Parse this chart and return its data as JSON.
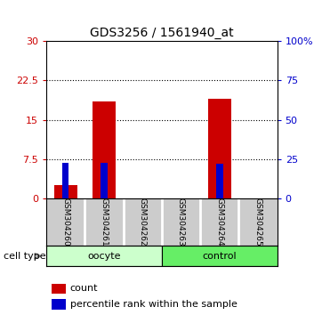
{
  "title": "GDS3256 / 1561940_at",
  "samples": [
    "GSM304260",
    "GSM304261",
    "GSM304262",
    "GSM304263",
    "GSM304264",
    "GSM304265"
  ],
  "count_values": [
    2.5,
    18.5,
    0.0,
    0.0,
    19.0,
    0.0
  ],
  "percentile_values": [
    22.5,
    22.5,
    0.0,
    0.0,
    22.0,
    0.0
  ],
  "count_color": "#cc0000",
  "percentile_color": "#0000cc",
  "ylim_left": [
    0,
    30
  ],
  "ylim_right": [
    0,
    100
  ],
  "yticks_left": [
    0,
    7.5,
    15,
    22.5,
    30
  ],
  "yticks_right": [
    0,
    25,
    50,
    75,
    100
  ],
  "ytick_labels_left": [
    "0",
    "7.5",
    "15",
    "22.5",
    "30"
  ],
  "ytick_labels_right": [
    "0",
    "25",
    "50",
    "75",
    "100%"
  ],
  "oocyte_color": "#ccffcc",
  "control_color": "#66ee66",
  "bar_bg_color": "#cccccc",
  "cell_type_label": "cell type",
  "oocyte_label": "oocyte",
  "control_label": "control",
  "legend_count": "count",
  "legend_percentile": "percentile rank within the sample"
}
